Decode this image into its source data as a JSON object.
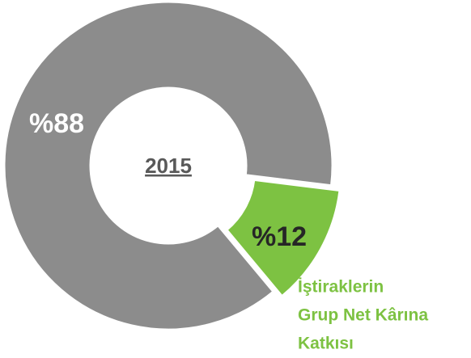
{
  "chart_data": {
    "type": "donut",
    "title": "2015",
    "values": [
      88,
      12
    ],
    "value_labels": [
      "%88",
      "%12"
    ],
    "colors": [
      "#8c8c8c",
      "#7dc242"
    ],
    "annotation": [
      "İştiraklerin",
      "Grup Net Kârına",
      "Katkısı"
    ]
  }
}
